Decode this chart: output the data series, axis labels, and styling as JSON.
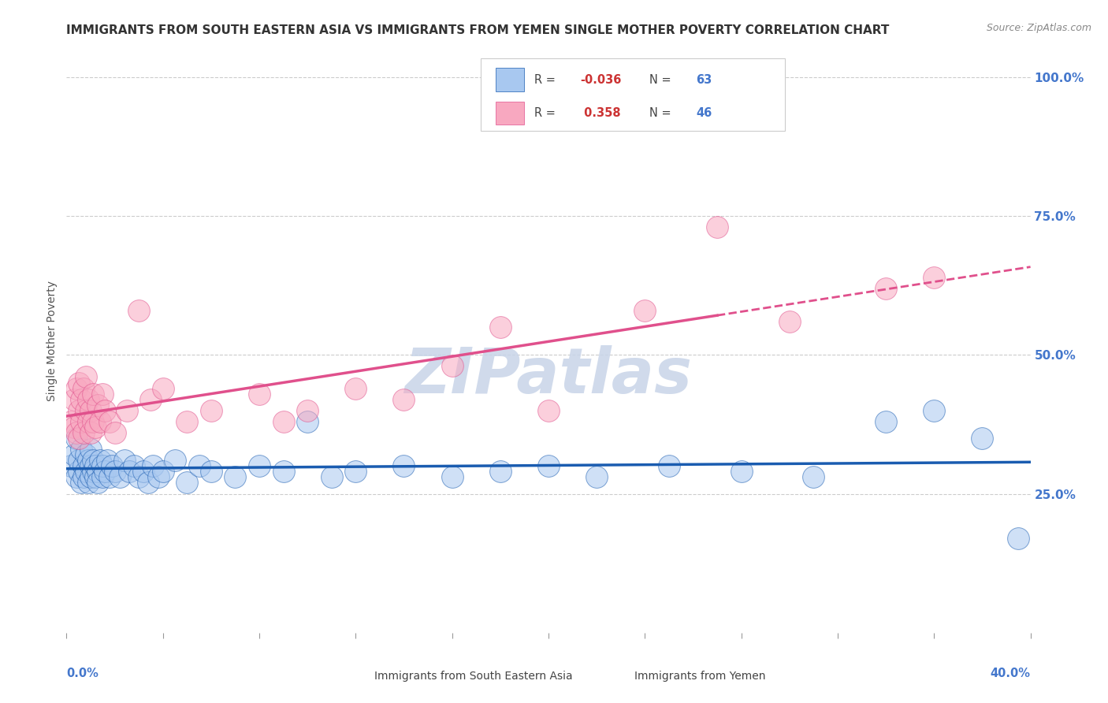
{
  "title": "IMMIGRANTS FROM SOUTH EASTERN ASIA VS IMMIGRANTS FROM YEMEN SINGLE MOTHER POVERTY CORRELATION CHART",
  "source": "Source: ZipAtlas.com",
  "ylabel": "Single Mother Poverty",
  "right_yticklabels": [
    "25.0%",
    "50.0%",
    "75.0%",
    "100.0%"
  ],
  "right_ytick_vals": [
    0.25,
    0.5,
    0.75,
    1.0
  ],
  "watermark": "ZIPatlas",
  "watermark_color": "#c8d4e8",
  "background_color": "#ffffff",
  "grid_color": "#cccccc",
  "blue_scatter_color": "#a8c8f0",
  "pink_scatter_color": "#f8a8c0",
  "blue_line_color": "#1a5cb0",
  "pink_line_color": "#e0508c",
  "blue_R": -0.036,
  "pink_R": 0.358,
  "blue_N": 63,
  "pink_N": 46,
  "blue_legend_color": "#a8c8f0",
  "pink_legend_color": "#f8a8c0",
  "blue_points_x": [
    0.002,
    0.003,
    0.004,
    0.004,
    0.005,
    0.005,
    0.006,
    0.006,
    0.007,
    0.007,
    0.008,
    0.008,
    0.009,
    0.009,
    0.01,
    0.01,
    0.01,
    0.011,
    0.011,
    0.012,
    0.012,
    0.013,
    0.013,
    0.014,
    0.015,
    0.015,
    0.016,
    0.017,
    0.018,
    0.019,
    0.02,
    0.022,
    0.024,
    0.026,
    0.028,
    0.03,
    0.032,
    0.034,
    0.036,
    0.038,
    0.04,
    0.045,
    0.05,
    0.055,
    0.06,
    0.07,
    0.08,
    0.09,
    0.1,
    0.11,
    0.12,
    0.14,
    0.16,
    0.18,
    0.2,
    0.22,
    0.25,
    0.28,
    0.31,
    0.34,
    0.36,
    0.38,
    0.395
  ],
  "blue_points_y": [
    0.3,
    0.32,
    0.28,
    0.35,
    0.29,
    0.31,
    0.27,
    0.33,
    0.3,
    0.28,
    0.32,
    0.29,
    0.31,
    0.27,
    0.3,
    0.28,
    0.33,
    0.29,
    0.31,
    0.28,
    0.3,
    0.29,
    0.27,
    0.31,
    0.28,
    0.3,
    0.29,
    0.31,
    0.28,
    0.3,
    0.29,
    0.28,
    0.31,
    0.29,
    0.3,
    0.28,
    0.29,
    0.27,
    0.3,
    0.28,
    0.29,
    0.31,
    0.27,
    0.3,
    0.29,
    0.28,
    0.3,
    0.29,
    0.38,
    0.28,
    0.29,
    0.3,
    0.28,
    0.29,
    0.3,
    0.28,
    0.3,
    0.29,
    0.28,
    0.38,
    0.4,
    0.35,
    0.17
  ],
  "pink_points_x": [
    0.002,
    0.003,
    0.003,
    0.004,
    0.004,
    0.005,
    0.005,
    0.005,
    0.006,
    0.006,
    0.007,
    0.007,
    0.008,
    0.008,
    0.009,
    0.009,
    0.01,
    0.01,
    0.011,
    0.011,
    0.012,
    0.013,
    0.014,
    0.015,
    0.016,
    0.018,
    0.02,
    0.025,
    0.03,
    0.035,
    0.04,
    0.05,
    0.06,
    0.08,
    0.09,
    0.1,
    0.12,
    0.14,
    0.16,
    0.18,
    0.2,
    0.24,
    0.27,
    0.3,
    0.34,
    0.36
  ],
  "pink_points_y": [
    0.38,
    0.42,
    0.37,
    0.44,
    0.36,
    0.4,
    0.45,
    0.35,
    0.42,
    0.38,
    0.44,
    0.36,
    0.4,
    0.46,
    0.38,
    0.42,
    0.36,
    0.4,
    0.38,
    0.43,
    0.37,
    0.41,
    0.38,
    0.43,
    0.4,
    0.38,
    0.36,
    0.4,
    0.58,
    0.42,
    0.44,
    0.38,
    0.4,
    0.43,
    0.38,
    0.4,
    0.44,
    0.42,
    0.48,
    0.55,
    0.4,
    0.58,
    0.73,
    0.56,
    0.62,
    0.64
  ],
  "xlim": [
    0.0,
    0.4
  ],
  "ylim": [
    0.0,
    1.05
  ],
  "title_fontsize": 11,
  "tick_fontsize": 10
}
